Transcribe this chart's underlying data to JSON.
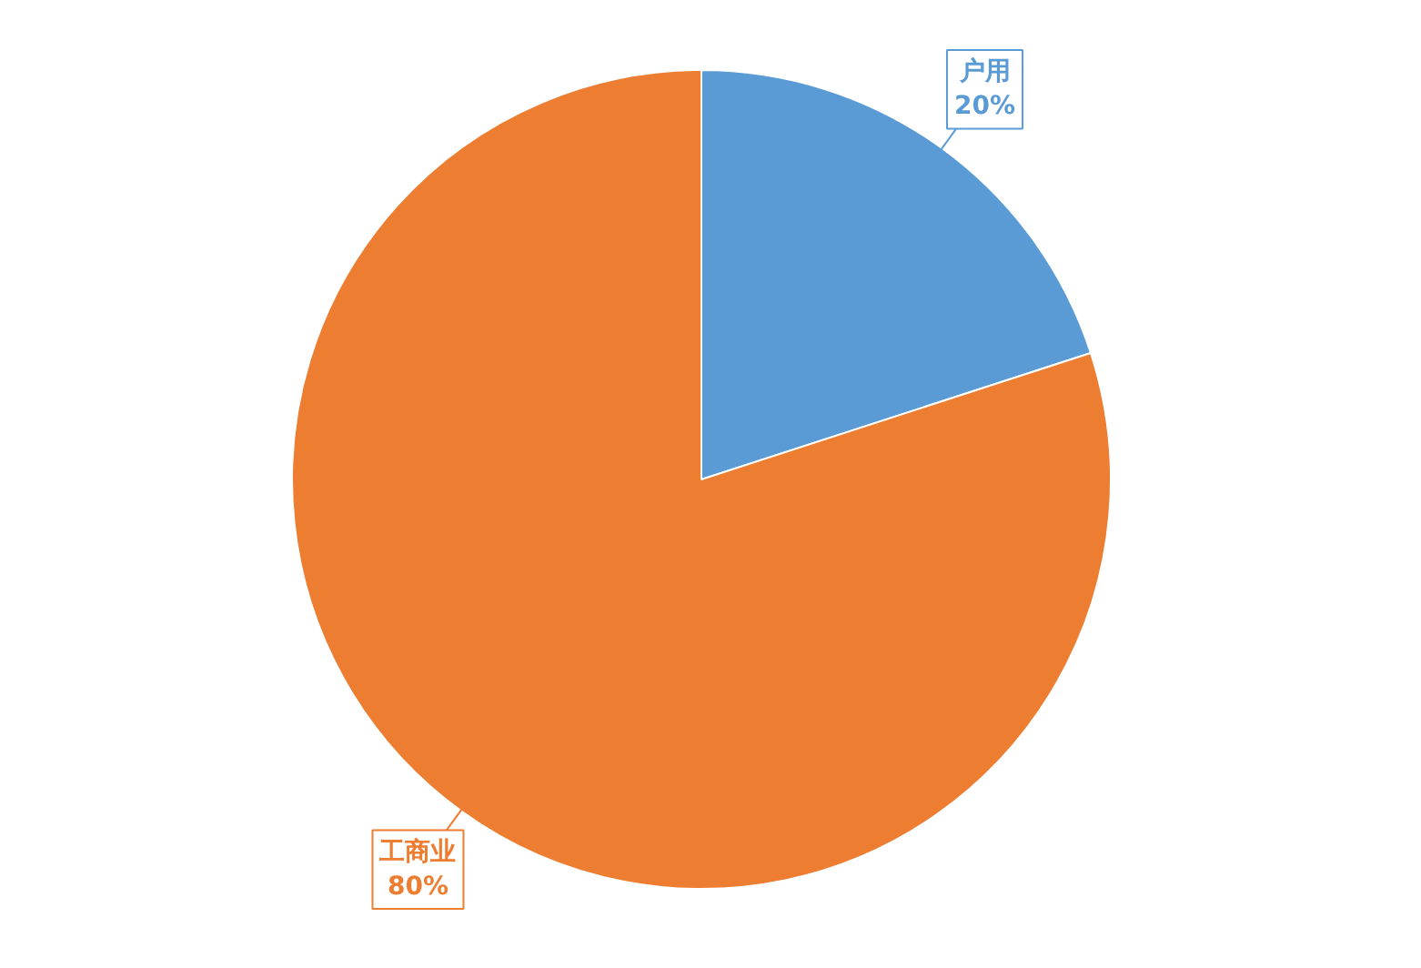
{
  "chart_data": {
    "type": "pie",
    "categories": [
      "户用",
      "工商业"
    ],
    "values": [
      20,
      80
    ],
    "colors": [
      "#5b9bd5",
      "#ed7d31"
    ],
    "value_labels": [
      "20%",
      "80%"
    ]
  }
}
